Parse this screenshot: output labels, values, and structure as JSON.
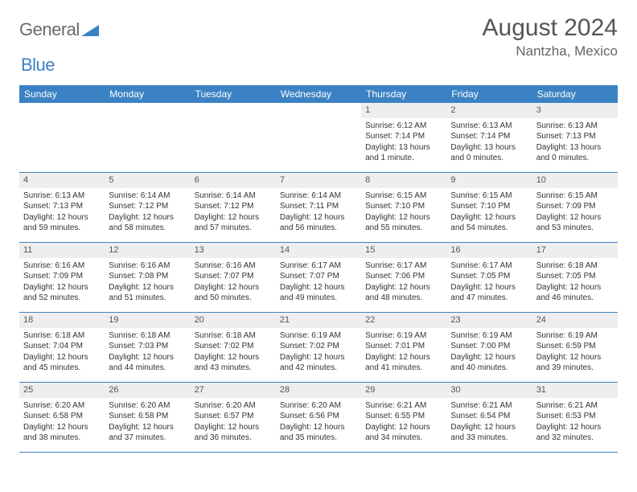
{
  "logo": {
    "word1": "General",
    "word2": "Blue"
  },
  "title": "August 2024",
  "location": "Nantzha, Mexico",
  "colors": {
    "header_bg": "#3b82c4",
    "header_text": "#ffffff",
    "daynum_bg": "#eeeeee",
    "border": "#3b82c4",
    "title_color": "#555555",
    "body_text": "#333333"
  },
  "day_names": [
    "Sunday",
    "Monday",
    "Tuesday",
    "Wednesday",
    "Thursday",
    "Friday",
    "Saturday"
  ],
  "weeks": [
    [
      {
        "n": "",
        "sr": "",
        "ss": "",
        "dl": "",
        "dl2": ""
      },
      {
        "n": "",
        "sr": "",
        "ss": "",
        "dl": "",
        "dl2": ""
      },
      {
        "n": "",
        "sr": "",
        "ss": "",
        "dl": "",
        "dl2": ""
      },
      {
        "n": "",
        "sr": "",
        "ss": "",
        "dl": "",
        "dl2": ""
      },
      {
        "n": "1",
        "sr": "Sunrise: 6:12 AM",
        "ss": "Sunset: 7:14 PM",
        "dl": "Daylight: 13 hours",
        "dl2": "and 1 minute."
      },
      {
        "n": "2",
        "sr": "Sunrise: 6:13 AM",
        "ss": "Sunset: 7:14 PM",
        "dl": "Daylight: 13 hours",
        "dl2": "and 0 minutes."
      },
      {
        "n": "3",
        "sr": "Sunrise: 6:13 AM",
        "ss": "Sunset: 7:13 PM",
        "dl": "Daylight: 13 hours",
        "dl2": "and 0 minutes."
      }
    ],
    [
      {
        "n": "4",
        "sr": "Sunrise: 6:13 AM",
        "ss": "Sunset: 7:13 PM",
        "dl": "Daylight: 12 hours",
        "dl2": "and 59 minutes."
      },
      {
        "n": "5",
        "sr": "Sunrise: 6:14 AM",
        "ss": "Sunset: 7:12 PM",
        "dl": "Daylight: 12 hours",
        "dl2": "and 58 minutes."
      },
      {
        "n": "6",
        "sr": "Sunrise: 6:14 AM",
        "ss": "Sunset: 7:12 PM",
        "dl": "Daylight: 12 hours",
        "dl2": "and 57 minutes."
      },
      {
        "n": "7",
        "sr": "Sunrise: 6:14 AM",
        "ss": "Sunset: 7:11 PM",
        "dl": "Daylight: 12 hours",
        "dl2": "and 56 minutes."
      },
      {
        "n": "8",
        "sr": "Sunrise: 6:15 AM",
        "ss": "Sunset: 7:10 PM",
        "dl": "Daylight: 12 hours",
        "dl2": "and 55 minutes."
      },
      {
        "n": "9",
        "sr": "Sunrise: 6:15 AM",
        "ss": "Sunset: 7:10 PM",
        "dl": "Daylight: 12 hours",
        "dl2": "and 54 minutes."
      },
      {
        "n": "10",
        "sr": "Sunrise: 6:15 AM",
        "ss": "Sunset: 7:09 PM",
        "dl": "Daylight: 12 hours",
        "dl2": "and 53 minutes."
      }
    ],
    [
      {
        "n": "11",
        "sr": "Sunrise: 6:16 AM",
        "ss": "Sunset: 7:09 PM",
        "dl": "Daylight: 12 hours",
        "dl2": "and 52 minutes."
      },
      {
        "n": "12",
        "sr": "Sunrise: 6:16 AM",
        "ss": "Sunset: 7:08 PM",
        "dl": "Daylight: 12 hours",
        "dl2": "and 51 minutes."
      },
      {
        "n": "13",
        "sr": "Sunrise: 6:16 AM",
        "ss": "Sunset: 7:07 PM",
        "dl": "Daylight: 12 hours",
        "dl2": "and 50 minutes."
      },
      {
        "n": "14",
        "sr": "Sunrise: 6:17 AM",
        "ss": "Sunset: 7:07 PM",
        "dl": "Daylight: 12 hours",
        "dl2": "and 49 minutes."
      },
      {
        "n": "15",
        "sr": "Sunrise: 6:17 AM",
        "ss": "Sunset: 7:06 PM",
        "dl": "Daylight: 12 hours",
        "dl2": "and 48 minutes."
      },
      {
        "n": "16",
        "sr": "Sunrise: 6:17 AM",
        "ss": "Sunset: 7:05 PM",
        "dl": "Daylight: 12 hours",
        "dl2": "and 47 minutes."
      },
      {
        "n": "17",
        "sr": "Sunrise: 6:18 AM",
        "ss": "Sunset: 7:05 PM",
        "dl": "Daylight: 12 hours",
        "dl2": "and 46 minutes."
      }
    ],
    [
      {
        "n": "18",
        "sr": "Sunrise: 6:18 AM",
        "ss": "Sunset: 7:04 PM",
        "dl": "Daylight: 12 hours",
        "dl2": "and 45 minutes."
      },
      {
        "n": "19",
        "sr": "Sunrise: 6:18 AM",
        "ss": "Sunset: 7:03 PM",
        "dl": "Daylight: 12 hours",
        "dl2": "and 44 minutes."
      },
      {
        "n": "20",
        "sr": "Sunrise: 6:18 AM",
        "ss": "Sunset: 7:02 PM",
        "dl": "Daylight: 12 hours",
        "dl2": "and 43 minutes."
      },
      {
        "n": "21",
        "sr": "Sunrise: 6:19 AM",
        "ss": "Sunset: 7:02 PM",
        "dl": "Daylight: 12 hours",
        "dl2": "and 42 minutes."
      },
      {
        "n": "22",
        "sr": "Sunrise: 6:19 AM",
        "ss": "Sunset: 7:01 PM",
        "dl": "Daylight: 12 hours",
        "dl2": "and 41 minutes."
      },
      {
        "n": "23",
        "sr": "Sunrise: 6:19 AM",
        "ss": "Sunset: 7:00 PM",
        "dl": "Daylight: 12 hours",
        "dl2": "and 40 minutes."
      },
      {
        "n": "24",
        "sr": "Sunrise: 6:19 AM",
        "ss": "Sunset: 6:59 PM",
        "dl": "Daylight: 12 hours",
        "dl2": "and 39 minutes."
      }
    ],
    [
      {
        "n": "25",
        "sr": "Sunrise: 6:20 AM",
        "ss": "Sunset: 6:58 PM",
        "dl": "Daylight: 12 hours",
        "dl2": "and 38 minutes."
      },
      {
        "n": "26",
        "sr": "Sunrise: 6:20 AM",
        "ss": "Sunset: 6:58 PM",
        "dl": "Daylight: 12 hours",
        "dl2": "and 37 minutes."
      },
      {
        "n": "27",
        "sr": "Sunrise: 6:20 AM",
        "ss": "Sunset: 6:57 PM",
        "dl": "Daylight: 12 hours",
        "dl2": "and 36 minutes."
      },
      {
        "n": "28",
        "sr": "Sunrise: 6:20 AM",
        "ss": "Sunset: 6:56 PM",
        "dl": "Daylight: 12 hours",
        "dl2": "and 35 minutes."
      },
      {
        "n": "29",
        "sr": "Sunrise: 6:21 AM",
        "ss": "Sunset: 6:55 PM",
        "dl": "Daylight: 12 hours",
        "dl2": "and 34 minutes."
      },
      {
        "n": "30",
        "sr": "Sunrise: 6:21 AM",
        "ss": "Sunset: 6:54 PM",
        "dl": "Daylight: 12 hours",
        "dl2": "and 33 minutes."
      },
      {
        "n": "31",
        "sr": "Sunrise: 6:21 AM",
        "ss": "Sunset: 6:53 PM",
        "dl": "Daylight: 12 hours",
        "dl2": "and 32 minutes."
      }
    ]
  ]
}
